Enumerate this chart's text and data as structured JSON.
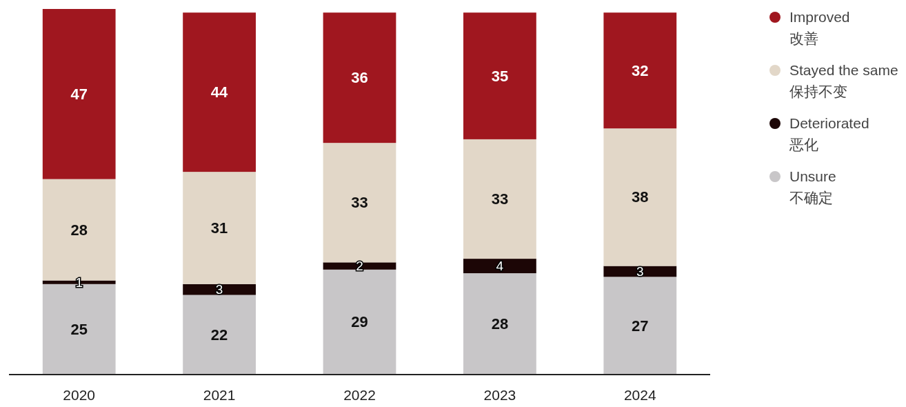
{
  "chart_data": {
    "type": "bar",
    "stacked": true,
    "categories": [
      "2020",
      "2021",
      "2022",
      "2023",
      "2024"
    ],
    "series": [
      {
        "name": "Unsure\n不确定",
        "color": "#c8c6c8",
        "values": [
          25,
          22,
          29,
          28,
          27
        ]
      },
      {
        "name": "Deteriorated\n恶化",
        "color": "#1c0606",
        "values": [
          1,
          3,
          2,
          4,
          3
        ]
      },
      {
        "name": "Stayed the same\n保持不变",
        "color": "#e2d7c8",
        "values": [
          28,
          31,
          33,
          33,
          38
        ]
      },
      {
        "name": "Improved\n改善",
        "color": "#a0171f",
        "values": [
          47,
          44,
          36,
          35,
          32
        ]
      }
    ],
    "data_labels": true,
    "legend": "top right",
    "tick_labels": "x"
  }
}
